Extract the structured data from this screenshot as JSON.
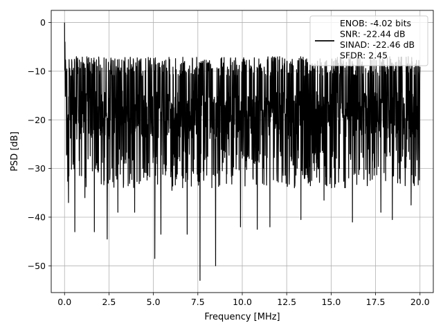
{
  "chart_data": {
    "type": "line",
    "xlabel": "Frequency [MHz]",
    "ylabel": "PSD [dB]",
    "xlim": [
      -0.75,
      20.75
    ],
    "ylim": [
      -55.5,
      2.5
    ],
    "xticks": [
      0.0,
      2.5,
      5.0,
      7.5,
      10.0,
      12.5,
      15.0,
      17.5,
      20.0
    ],
    "xtick_labels": [
      "0.0",
      "2.5",
      "5.0",
      "7.5",
      "10.0",
      "12.5",
      "15.0",
      "17.5",
      "20.0"
    ],
    "yticks": [
      0,
      -10,
      -20,
      -30,
      -40,
      -50
    ],
    "ytick_labels": [
      "0",
      "−10",
      "−20",
      "−30",
      "−40",
      "−50"
    ],
    "grid": true,
    "legend_position": "top-right",
    "series": [
      {
        "name": "ENOB: -4.02 bits\nSNR: -22.44 dB\nSINAD: -22.46 dB\nSFDR: 2.45",
        "color": "#000000",
        "x_range": [
          0.0,
          20.0
        ],
        "baseline_db": -19,
        "noise_band_db": [
          -30,
          -8
        ],
        "peak": {
          "x": 0.0,
          "y": 0.0
        },
        "notable_dips": [
          {
            "x": 0.22,
            "y": -37
          },
          {
            "x": 0.58,
            "y": -43
          },
          {
            "x": 1.15,
            "y": -36
          },
          {
            "x": 1.68,
            "y": -43
          },
          {
            "x": 2.4,
            "y": -44.5
          },
          {
            "x": 3.0,
            "y": -39
          },
          {
            "x": 3.95,
            "y": -39
          },
          {
            "x": 5.08,
            "y": -48.5
          },
          {
            "x": 5.42,
            "y": -43.5
          },
          {
            "x": 6.05,
            "y": -34.5
          },
          {
            "x": 6.9,
            "y": -43.5
          },
          {
            "x": 7.62,
            "y": -53
          },
          {
            "x": 8.5,
            "y": -50
          },
          {
            "x": 9.9,
            "y": -42
          },
          {
            "x": 10.85,
            "y": -42.5
          },
          {
            "x": 11.55,
            "y": -42
          },
          {
            "x": 13.3,
            "y": -40.5
          },
          {
            "x": 14.6,
            "y": -36.5
          },
          {
            "x": 16.2,
            "y": -41
          },
          {
            "x": 17.8,
            "y": -39
          },
          {
            "x": 18.45,
            "y": -40.5
          },
          {
            "x": 19.5,
            "y": -37.5
          }
        ]
      }
    ]
  }
}
